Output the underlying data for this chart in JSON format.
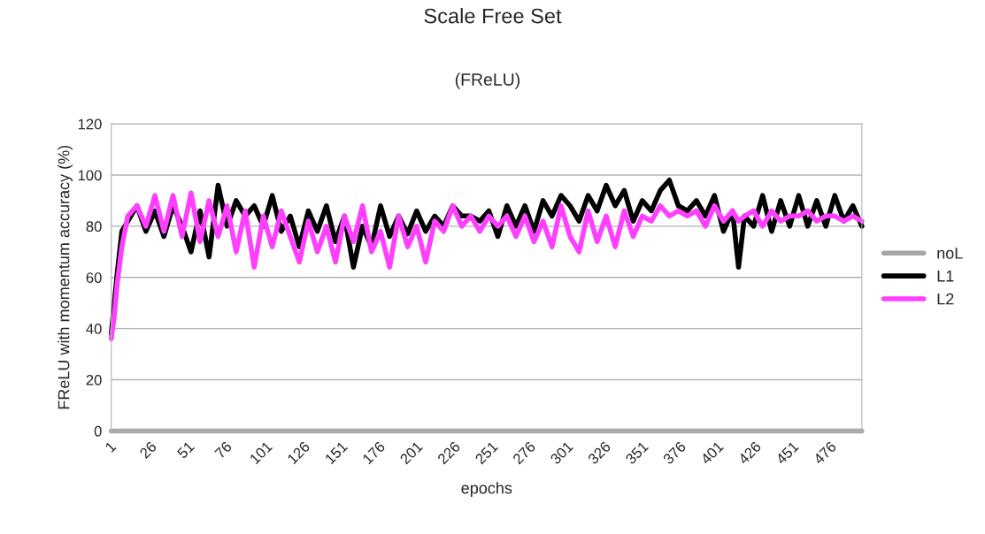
{
  "chart_data": {
    "type": "line",
    "title": "Scale Free Set",
    "subtitle": "(FReLU)",
    "xlabel": "epochs",
    "ylabel": "FReLU with momentum accuracy (%)",
    "x": [
      1,
      3,
      5,
      8,
      12,
      18,
      24,
      30,
      36,
      42,
      48,
      54,
      60,
      66,
      72,
      78,
      84,
      90,
      96,
      102,
      108,
      114,
      120,
      126,
      132,
      138,
      144,
      150,
      156,
      162,
      168,
      174,
      180,
      186,
      192,
      198,
      204,
      210,
      216,
      222,
      228,
      234,
      240,
      246,
      252,
      258,
      264,
      270,
      276,
      282,
      288,
      294,
      300,
      306,
      312,
      318,
      324,
      330,
      336,
      342,
      348,
      354,
      360,
      366,
      372,
      378,
      384,
      390,
      396,
      402,
      408,
      414,
      418,
      422,
      428,
      434,
      440,
      446,
      452,
      458,
      464,
      470,
      476,
      482,
      488,
      494,
      500
    ],
    "series": [
      {
        "name": "noL",
        "color": "#a6a6a6",
        "x": [
          1,
          500
        ],
        "values": [
          0,
          0
        ]
      },
      {
        "name": "L1",
        "color": "#000000",
        "values": [
          38,
          50,
          62,
          78,
          82,
          88,
          78,
          86,
          76,
          88,
          80,
          70,
          86,
          68,
          96,
          80,
          90,
          84,
          88,
          80,
          92,
          78,
          84,
          72,
          86,
          78,
          88,
          74,
          84,
          64,
          80,
          72,
          88,
          76,
          84,
          77,
          86,
          78,
          84,
          80,
          88,
          84,
          84,
          82,
          86,
          76,
          88,
          80,
          88,
          78,
          90,
          84,
          92,
          88,
          82,
          92,
          86,
          96,
          88,
          94,
          82,
          90,
          86,
          94,
          98,
          88,
          86,
          90,
          84,
          92,
          78,
          86,
          64,
          84,
          80,
          92,
          78,
          90,
          80,
          92,
          80,
          90,
          80,
          92,
          82,
          88,
          80
        ]
      },
      {
        "name": "L2",
        "color": "#ff3fff",
        "values": [
          36,
          45,
          58,
          72,
          84,
          88,
          80,
          92,
          78,
          92,
          76,
          93,
          74,
          90,
          76,
          88,
          70,
          86,
          64,
          84,
          72,
          86,
          76,
          66,
          82,
          70,
          80,
          66,
          84,
          74,
          88,
          70,
          78,
          64,
          84,
          72,
          80,
          66,
          82,
          78,
          88,
          80,
          84,
          78,
          84,
          80,
          84,
          76,
          84,
          74,
          82,
          72,
          88,
          76,
          70,
          86,
          74,
          84,
          72,
          86,
          76,
          84,
          82,
          88,
          84,
          86,
          84,
          86,
          80,
          88,
          82,
          86,
          82,
          84,
          86,
          80,
          86,
          82,
          84,
          84,
          86,
          82,
          84,
          84,
          82,
          84,
          82
        ]
      }
    ],
    "xlim": [
      1,
      500
    ],
    "xticks": [
      1,
      26,
      51,
      76,
      101,
      126,
      151,
      176,
      201,
      226,
      251,
      276,
      301,
      326,
      351,
      376,
      401,
      426,
      451,
      476
    ],
    "ylim": [
      0,
      120
    ],
    "yticks": [
      0,
      20,
      40,
      60,
      80,
      100,
      120
    ],
    "grid": "y",
    "legend": "right",
    "line_style": "solid",
    "marker": "none"
  }
}
